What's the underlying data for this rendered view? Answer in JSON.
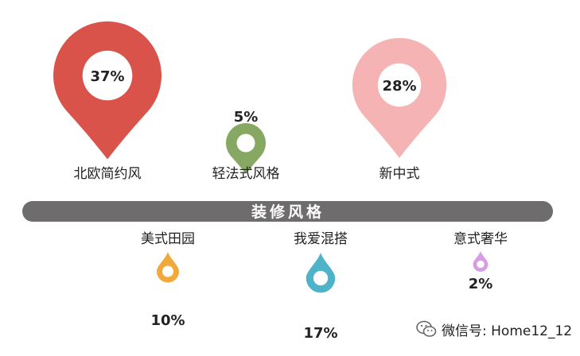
{
  "chart_data": {
    "type": "pin-infographic",
    "title": "装修风格",
    "categories": [
      "北欧简约风",
      "轻法式风格",
      "新中式",
      "美式田园",
      "我爱混搭",
      "意式奢华"
    ],
    "values": [
      37,
      5,
      28,
      10,
      17,
      2
    ],
    "value_labels": [
      "37%",
      "5%",
      "28%",
      "10%",
      "17%",
      "2%"
    ],
    "unit": "%",
    "colors": [
      "#d9534a",
      "#87a862",
      "#f6b3b3",
      "#f2a93b",
      "#4eb3c9",
      "#d79ce3"
    ]
  },
  "watermark": {
    "text": "微信号: Home12_12",
    "icon": "wechat-icon"
  }
}
